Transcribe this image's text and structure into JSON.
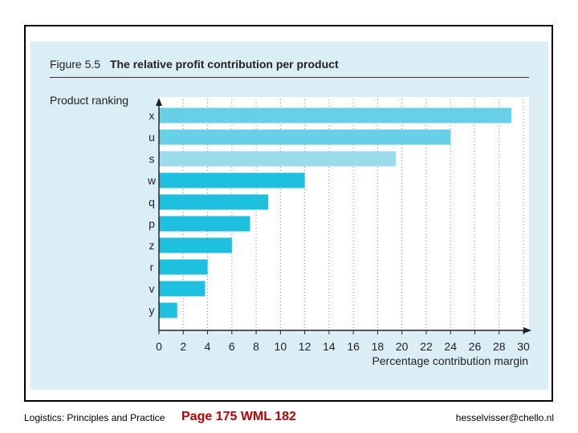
{
  "figure": {
    "number": "Figure 5.5",
    "title": "The relative profit contribution per product"
  },
  "footer": {
    "left": "Logistics: Principles and Practice",
    "middle": "Page 175 WML 182",
    "right": "hesselvisser@chello.nl"
  },
  "colors": {
    "frame": "#000000",
    "panel_bg": "#dbeef6",
    "bar_dark": "#1ec0df",
    "bar_mid": "#66d0e6",
    "bar_light": "#9bdcec",
    "footer_mid": "#c00000"
  },
  "chart_data": {
    "type": "bar",
    "orientation": "horizontal",
    "title": "The relative profit contribution per product",
    "xlabel": "Percentage contribution margin",
    "ylabel": "Product ranking",
    "categories": [
      "x",
      "u",
      "s",
      "w",
      "q",
      "p",
      "z",
      "r",
      "v",
      "y"
    ],
    "values": [
      29,
      24,
      19.5,
      12,
      9,
      7.5,
      6,
      4,
      3.8,
      1.5
    ],
    "bar_tone": [
      "mid",
      "mid",
      "light",
      "dark",
      "dark",
      "dark",
      "dark",
      "dark",
      "dark",
      "dark"
    ],
    "xlim": [
      0,
      30
    ],
    "xticks": [
      0,
      2,
      4,
      6,
      8,
      10,
      12,
      14,
      16,
      18,
      20,
      22,
      24,
      26,
      28,
      30
    ],
    "grid": true
  }
}
